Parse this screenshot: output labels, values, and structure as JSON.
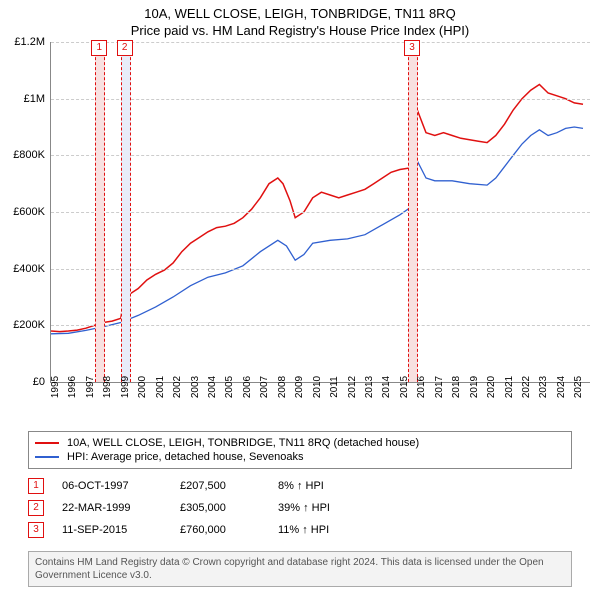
{
  "title_line1": "10A, WELL CLOSE, LEIGH, TONBRIDGE, TN11 8RQ",
  "title_line2": "Price paid vs. HM Land Registry's House Price Index (HPI)",
  "chart": {
    "type": "line",
    "x_min": 1995,
    "x_max": 2025.9,
    "y_min": 0,
    "y_max": 1200000,
    "y_ticks": [
      0,
      200000,
      400000,
      600000,
      800000,
      1000000,
      1200000
    ],
    "y_tick_labels": [
      "£0",
      "£200K",
      "£400K",
      "£600K",
      "£800K",
      "£1M",
      "£1.2M"
    ],
    "x_ticks": [
      1995,
      1996,
      1997,
      1998,
      1999,
      2000,
      2001,
      2002,
      2003,
      2004,
      2005,
      2006,
      2007,
      2008,
      2009,
      2010,
      2011,
      2012,
      2013,
      2014,
      2015,
      2016,
      2017,
      2018,
      2019,
      2020,
      2021,
      2022,
      2023,
      2024,
      2025
    ],
    "grid_color": "#cccccc",
    "background_color": "#ffffff",
    "series": [
      {
        "name": "property",
        "label": "10A, WELL CLOSE, LEIGH, TONBRIDGE, TN11 8RQ (detached house)",
        "color": "#e01010",
        "width": 1.5,
        "points": [
          [
            1995.0,
            180000
          ],
          [
            1995.5,
            178000
          ],
          [
            1996.0,
            180000
          ],
          [
            1996.5,
            183000
          ],
          [
            1997.0,
            190000
          ],
          [
            1997.5,
            200000
          ],
          [
            1997.77,
            207500
          ],
          [
            1998.0,
            210000
          ],
          [
            1998.5,
            215000
          ],
          [
            1999.0,
            225000
          ],
          [
            1999.22,
            305000
          ],
          [
            1999.5,
            310000
          ],
          [
            2000.0,
            330000
          ],
          [
            2000.5,
            360000
          ],
          [
            2001.0,
            380000
          ],
          [
            2001.5,
            395000
          ],
          [
            2002.0,
            420000
          ],
          [
            2002.5,
            460000
          ],
          [
            2003.0,
            490000
          ],
          [
            2003.5,
            510000
          ],
          [
            2004.0,
            530000
          ],
          [
            2004.5,
            545000
          ],
          [
            2005.0,
            550000
          ],
          [
            2005.5,
            560000
          ],
          [
            2006.0,
            580000
          ],
          [
            2006.5,
            610000
          ],
          [
            2007.0,
            650000
          ],
          [
            2007.5,
            700000
          ],
          [
            2008.0,
            720000
          ],
          [
            2008.3,
            700000
          ],
          [
            2008.7,
            640000
          ],
          [
            2009.0,
            580000
          ],
          [
            2009.5,
            600000
          ],
          [
            2010.0,
            650000
          ],
          [
            2010.5,
            670000
          ],
          [
            2011.0,
            660000
          ],
          [
            2011.5,
            650000
          ],
          [
            2012.0,
            660000
          ],
          [
            2012.5,
            670000
          ],
          [
            2013.0,
            680000
          ],
          [
            2013.5,
            700000
          ],
          [
            2014.0,
            720000
          ],
          [
            2014.5,
            740000
          ],
          [
            2015.0,
            750000
          ],
          [
            2015.5,
            755000
          ],
          [
            2015.7,
            760000
          ],
          [
            2016.0,
            960000
          ],
          [
            2016.5,
            880000
          ],
          [
            2017.0,
            870000
          ],
          [
            2017.5,
            880000
          ],
          [
            2018.0,
            870000
          ],
          [
            2018.5,
            860000
          ],
          [
            2019.0,
            855000
          ],
          [
            2019.5,
            850000
          ],
          [
            2020.0,
            845000
          ],
          [
            2020.5,
            870000
          ],
          [
            2021.0,
            910000
          ],
          [
            2021.5,
            960000
          ],
          [
            2022.0,
            1000000
          ],
          [
            2022.5,
            1030000
          ],
          [
            2023.0,
            1050000
          ],
          [
            2023.5,
            1020000
          ],
          [
            2024.0,
            1010000
          ],
          [
            2024.5,
            1000000
          ],
          [
            2025.0,
            985000
          ],
          [
            2025.5,
            980000
          ]
        ]
      },
      {
        "name": "hpi",
        "label": "HPI: Average price, detached house, Sevenoaks",
        "color": "#3060d0",
        "width": 1.3,
        "points": [
          [
            1995.0,
            170000
          ],
          [
            1996.0,
            172000
          ],
          [
            1997.0,
            182000
          ],
          [
            1998.0,
            195000
          ],
          [
            1999.0,
            210000
          ],
          [
            2000.0,
            235000
          ],
          [
            2001.0,
            265000
          ],
          [
            2002.0,
            300000
          ],
          [
            2003.0,
            340000
          ],
          [
            2004.0,
            370000
          ],
          [
            2005.0,
            385000
          ],
          [
            2006.0,
            410000
          ],
          [
            2007.0,
            460000
          ],
          [
            2008.0,
            500000
          ],
          [
            2008.5,
            480000
          ],
          [
            2009.0,
            430000
          ],
          [
            2009.5,
            450000
          ],
          [
            2010.0,
            490000
          ],
          [
            2011.0,
            500000
          ],
          [
            2012.0,
            505000
          ],
          [
            2013.0,
            520000
          ],
          [
            2014.0,
            555000
          ],
          [
            2015.0,
            590000
          ],
          [
            2015.7,
            620000
          ],
          [
            2016.0,
            780000
          ],
          [
            2016.5,
            720000
          ],
          [
            2017.0,
            710000
          ],
          [
            2018.0,
            710000
          ],
          [
            2019.0,
            700000
          ],
          [
            2020.0,
            695000
          ],
          [
            2020.5,
            720000
          ],
          [
            2021.0,
            760000
          ],
          [
            2021.5,
            800000
          ],
          [
            2022.0,
            840000
          ],
          [
            2022.5,
            870000
          ],
          [
            2023.0,
            890000
          ],
          [
            2023.5,
            870000
          ],
          [
            2024.0,
            880000
          ],
          [
            2024.5,
            895000
          ],
          [
            2025.0,
            900000
          ],
          [
            2025.5,
            895000
          ]
        ]
      }
    ],
    "markers": [
      {
        "id": "1",
        "x": 1997.77,
        "color": "#e01010",
        "band_color": "#f8e0e0"
      },
      {
        "id": "2",
        "x": 1999.22,
        "color": "#e01010",
        "band_color": "#e8ecf8"
      },
      {
        "id": "3",
        "x": 2015.7,
        "color": "#e01010",
        "band_color": "#f8e0e0"
      }
    ]
  },
  "legend": {
    "rows": [
      {
        "swatch": "#e01010",
        "text": "10A, WELL CLOSE, LEIGH, TONBRIDGE, TN11 8RQ (detached house)"
      },
      {
        "swatch": "#3060d0",
        "text": "HPI: Average price, detached house, Sevenoaks"
      }
    ]
  },
  "sales": [
    {
      "id": "1",
      "color": "#e01010",
      "date": "06-OCT-1997",
      "price": "£207,500",
      "hpi": "8% ↑ HPI"
    },
    {
      "id": "2",
      "color": "#e01010",
      "date": "22-MAR-1999",
      "price": "£305,000",
      "hpi": "39% ↑ HPI"
    },
    {
      "id": "3",
      "color": "#e01010",
      "date": "11-SEP-2015",
      "price": "£760,000",
      "hpi": "11% ↑ HPI"
    }
  ],
  "footer_text": "Contains HM Land Registry data © Crown copyright and database right 2024. This data is licensed under the Open Government Licence v3.0."
}
